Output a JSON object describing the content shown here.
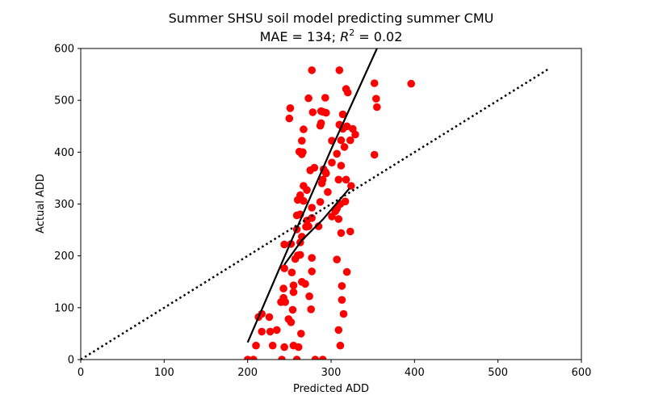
{
  "chart_data": {
    "type": "scatter",
    "title": "Summer SHSU soil model predicting summer CMU",
    "subtitle_prefix": "MAE = 134; ",
    "subtitle_r": "R",
    "subtitle_sup": "2",
    "subtitle_suffix": " = 0.02",
    "xlabel": "Predicted ADD",
    "ylabel": "Actual ADD",
    "xlim": [
      0,
      600
    ],
    "ylim": [
      0,
      600
    ],
    "xticks": [
      "0",
      "100",
      "200",
      "300",
      "400",
      "500",
      "600"
    ],
    "yticks": [
      "0",
      "100",
      "200",
      "300",
      "400",
      "500",
      "600"
    ],
    "grid": false,
    "legend": "none",
    "point_color": "#ff0000",
    "line_color": "#000000",
    "points": [
      [
        200,
        0
      ],
      [
        207,
        0
      ],
      [
        241,
        0
      ],
      [
        259,
        0
      ],
      [
        281,
        0
      ],
      [
        290,
        0
      ],
      [
        210,
        27
      ],
      [
        230,
        27
      ],
      [
        244,
        24
      ],
      [
        255,
        27
      ],
      [
        261,
        24
      ],
      [
        311,
        27
      ],
      [
        217,
        54
      ],
      [
        227,
        54
      ],
      [
        235,
        57
      ],
      [
        252,
        72
      ],
      [
        264,
        50
      ],
      [
        309,
        57
      ],
      [
        213,
        82
      ],
      [
        217,
        88
      ],
      [
        226,
        82
      ],
      [
        249,
        78
      ],
      [
        254,
        96
      ],
      [
        276,
        97
      ],
      [
        315,
        88
      ],
      [
        240,
        111
      ],
      [
        245,
        111
      ],
      [
        243,
        119
      ],
      [
        255,
        130
      ],
      [
        265,
        150
      ],
      [
        269,
        146
      ],
      [
        274,
        122
      ],
      [
        313,
        115
      ],
      [
        243,
        137
      ],
      [
        255,
        143
      ],
      [
        253,
        168
      ],
      [
        277,
        170
      ],
      [
        313,
        142
      ],
      [
        319,
        169
      ],
      [
        244,
        176
      ],
      [
        257,
        194
      ],
      [
        260,
        201
      ],
      [
        263,
        202
      ],
      [
        277,
        196
      ],
      [
        307,
        193
      ],
      [
        312,
        244
      ],
      [
        244,
        222
      ],
      [
        252,
        223
      ],
      [
        259,
        251
      ],
      [
        263,
        226
      ],
      [
        265,
        237
      ],
      [
        270,
        256
      ],
      [
        273,
        257
      ],
      [
        285,
        257
      ],
      [
        323,
        247
      ],
      [
        259,
        278
      ],
      [
        263,
        280
      ],
      [
        271,
        268
      ],
      [
        277,
        273
      ],
      [
        301,
        276
      ],
      [
        305,
        286
      ],
      [
        309,
        271
      ],
      [
        260,
        308
      ],
      [
        263,
        317
      ],
      [
        267,
        306
      ],
      [
        271,
        327
      ],
      [
        277,
        293
      ],
      [
        287,
        304
      ],
      [
        307,
        291
      ],
      [
        311,
        300
      ],
      [
        317,
        305
      ],
      [
        324,
        335
      ],
      [
        267,
        335
      ],
      [
        280,
        370
      ],
      [
        290,
        347
      ],
      [
        291,
        367
      ],
      [
        294,
        359
      ],
      [
        296,
        323
      ],
      [
        309,
        347
      ],
      [
        312,
        374
      ],
      [
        318,
        347
      ],
      [
        262,
        401
      ],
      [
        265,
        396
      ],
      [
        266,
        400
      ],
      [
        265,
        422
      ],
      [
        275,
        365
      ],
      [
        289,
        340
      ],
      [
        293,
        362
      ],
      [
        301,
        380
      ],
      [
        301,
        422
      ],
      [
        307,
        397
      ],
      [
        312,
        423
      ],
      [
        316,
        410
      ],
      [
        319,
        450
      ],
      [
        323,
        423
      ],
      [
        326,
        445
      ],
      [
        329,
        434
      ],
      [
        352,
        395
      ],
      [
        250,
        465
      ],
      [
        267,
        444
      ],
      [
        278,
        477
      ],
      [
        287,
        451
      ],
      [
        288,
        456
      ],
      [
        288,
        479
      ],
      [
        290,
        478
      ],
      [
        294,
        476
      ],
      [
        310,
        453
      ],
      [
        314,
        473
      ],
      [
        314,
        445
      ],
      [
        251,
        485
      ],
      [
        273,
        504
      ],
      [
        293,
        505
      ],
      [
        318,
        522
      ],
      [
        320,
        515
      ],
      [
        352,
        533
      ],
      [
        354,
        503
      ],
      [
        355,
        487
      ],
      [
        396,
        532
      ],
      [
        277,
        558
      ],
      [
        310,
        558
      ]
    ],
    "lines": [
      {
        "name": "",
        "style": "solid",
        "points": [
          [
            200,
            33
          ],
          [
            250,
            220
          ],
          [
            300,
            405
          ],
          [
            355,
            600
          ]
        ]
      },
      {
        "name": "",
        "style": "solid",
        "points": [
          [
            244,
            183
          ],
          [
            265,
            230
          ],
          [
            290,
            270
          ],
          [
            322,
            330
          ]
        ]
      },
      {
        "name": "",
        "style": "dotted",
        "points": [
          [
            0,
            0
          ],
          [
            560,
            560
          ]
        ]
      }
    ]
  }
}
